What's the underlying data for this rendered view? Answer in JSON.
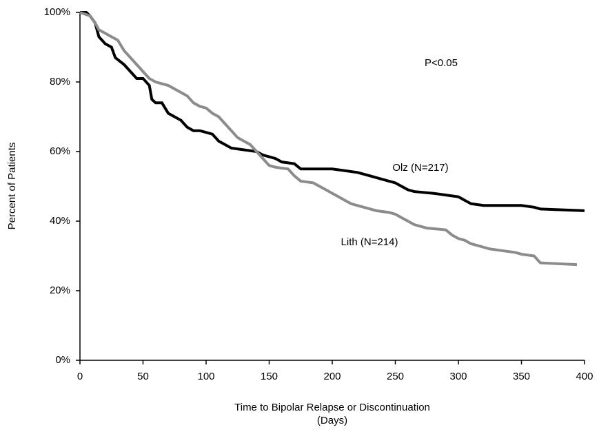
{
  "chart_data": {
    "type": "line",
    "y_label": "Percent of Patients",
    "x_label": [
      "Time to Bipolar Relapse or Discontinuation",
      "(Days)"
    ],
    "annotation": "P<0.05",
    "xlim": [
      0,
      400
    ],
    "xticks": [
      0,
      50,
      100,
      150,
      200,
      250,
      300,
      350,
      400
    ],
    "ylim": [
      0,
      100
    ],
    "yticks": [
      {
        "value": 0,
        "label": "0%"
      },
      {
        "value": 20,
        "label": "20%"
      },
      {
        "value": 40,
        "label": "40%"
      },
      {
        "value": 60,
        "label": "60%"
      },
      {
        "value": 80,
        "label": "80%"
      },
      {
        "value": 100,
        "label": "100%"
      }
    ],
    "series": [
      {
        "name": "Olz (N=217)",
        "color": "#000000",
        "x": [
          0,
          5,
          8,
          12,
          15,
          20,
          25,
          28,
          35,
          40,
          45,
          50,
          55,
          57,
          60,
          65,
          70,
          75,
          80,
          85,
          90,
          95,
          100,
          105,
          110,
          115,
          120,
          130,
          140,
          145,
          150,
          155,
          160,
          170,
          175,
          180,
          200,
          210,
          220,
          230,
          240,
          250,
          255,
          260,
          265,
          280,
          290,
          300,
          305,
          310,
          320,
          350,
          360,
          365,
          400
        ],
        "values": [
          100,
          100,
          99,
          97,
          93,
          91,
          90,
          87,
          85,
          83,
          81,
          81,
          79,
          75,
          74,
          74,
          71,
          70,
          69,
          67,
          66,
          66,
          65.5,
          65,
          63,
          62,
          61,
          60.5,
          60,
          59,
          58.5,
          58,
          57,
          56.5,
          55,
          55,
          55,
          54.5,
          54,
          53,
          52,
          51,
          50,
          49,
          48.5,
          48,
          47.5,
          47,
          46,
          45,
          44.5,
          44.5,
          44,
          43.5,
          43
        ]
      },
      {
        "name": "Lith (N=214)",
        "color": "#8c8c8c",
        "x": [
          0,
          8,
          12,
          15,
          20,
          25,
          30,
          35,
          40,
          45,
          50,
          55,
          60,
          70,
          75,
          80,
          85,
          90,
          95,
          100,
          105,
          110,
          115,
          120,
          125,
          130,
          135,
          140,
          145,
          150,
          155,
          165,
          170,
          175,
          185,
          190,
          195,
          200,
          205,
          210,
          215,
          220,
          225,
          235,
          245,
          250,
          255,
          260,
          265,
          275,
          290,
          295,
          300,
          305,
          310,
          315,
          320,
          325,
          335,
          345,
          350,
          360,
          365,
          394
        ],
        "values": [
          100,
          99,
          97,
          95,
          94,
          93,
          92,
          89,
          87,
          85,
          83,
          81,
          80,
          79,
          78,
          77,
          76,
          74,
          73,
          72.5,
          71,
          70,
          68,
          66,
          64,
          63,
          62,
          60,
          58,
          56,
          55.5,
          55,
          53,
          51.5,
          51,
          50,
          49,
          48,
          47,
          46,
          45,
          44.5,
          44,
          43,
          42.5,
          42,
          41,
          40,
          39,
          38,
          37.5,
          36,
          35,
          34.5,
          33.5,
          33,
          32.5,
          32,
          31.5,
          31,
          30.5,
          30,
          28,
          27.5
        ]
      }
    ]
  }
}
